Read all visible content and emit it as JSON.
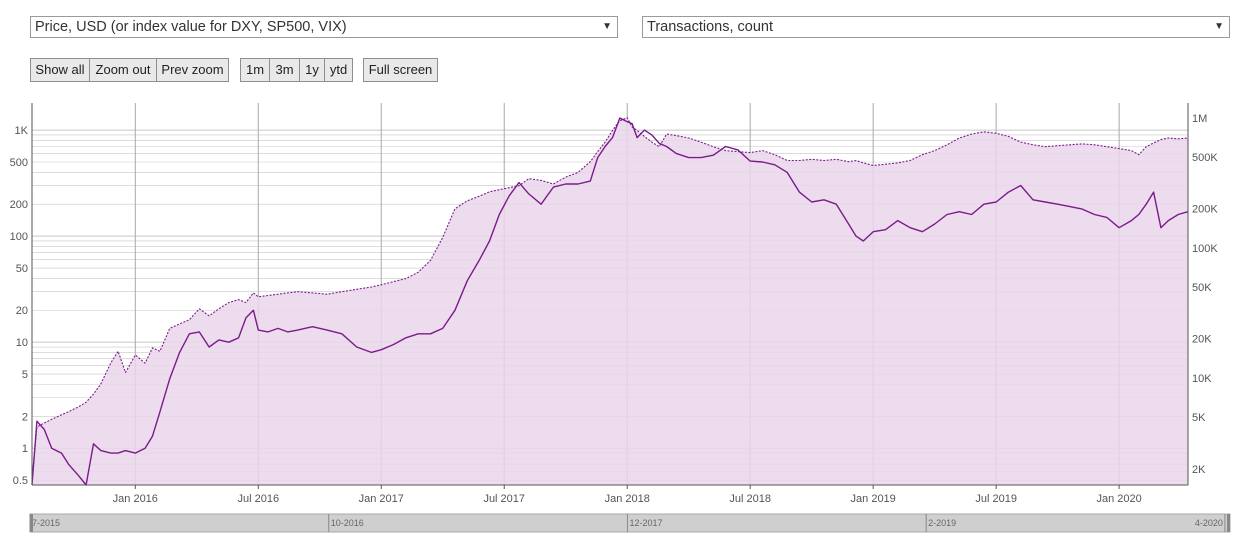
{
  "controls": {
    "left_select": {
      "value": "Price, USD (or index value for DXY, SP500, VIX)"
    },
    "right_select": {
      "value": "Transactions, count"
    },
    "zoom_buttons": [
      "Show all",
      "Zoom out",
      "Prev zoom"
    ],
    "range_buttons": [
      "1m",
      "3m",
      "1y",
      "ytd"
    ],
    "fullscreen_label": "Full screen",
    "arrow_glyph": "▼"
  },
  "colors": {
    "series": "#7b1b8c",
    "fill": "#ead6ea",
    "grid": "#c8c8c8",
    "navigator": "#cfcfcf"
  },
  "chart_data": {
    "type": "line",
    "title": "",
    "x_start": 2015.58,
    "x_end": 2020.28,
    "x_ticks": [
      {
        "x": 2016.0,
        "label": "Jan 2016"
      },
      {
        "x": 2016.5,
        "label": "Jul 2016"
      },
      {
        "x": 2017.0,
        "label": "Jan 2017"
      },
      {
        "x": 2017.5,
        "label": "Jul 2017"
      },
      {
        "x": 2018.0,
        "label": "Jan 2018"
      },
      {
        "x": 2018.5,
        "label": "Jul 2018"
      },
      {
        "x": 2019.0,
        "label": "Jan 2019"
      },
      {
        "x": 2019.5,
        "label": "Jul 2019"
      },
      {
        "x": 2020.0,
        "label": "Jan 2020"
      }
    ],
    "y_left": {
      "label": "Price, USD",
      "scale": "log",
      "ylim": [
        0.45,
        1800
      ],
      "ticks": [
        {
          "v": 1000,
          "label": "1K"
        },
        {
          "v": 500,
          "label": "500"
        },
        {
          "v": 200,
          "label": "200"
        },
        {
          "v": 100,
          "label": "100"
        },
        {
          "v": 50,
          "label": "50"
        },
        {
          "v": 20,
          "label": "20"
        },
        {
          "v": 10,
          "label": "10"
        },
        {
          "v": 5,
          "label": "5"
        },
        {
          "v": 2,
          "label": "2"
        },
        {
          "v": 1,
          "label": "1"
        },
        {
          "v": 0.5,
          "label": "0.5"
        }
      ]
    },
    "y_right": {
      "label": "Transactions, count",
      "scale": "log",
      "ylim": [
        1500,
        1300000
      ],
      "ticks": [
        {
          "v": 1000000,
          "label": "1M"
        },
        {
          "v": 500000,
          "label": "500K"
        },
        {
          "v": 200000,
          "label": "200K"
        },
        {
          "v": 100000,
          "label": "100K"
        },
        {
          "v": 50000,
          "label": "50K"
        },
        {
          "v": 20000,
          "label": "20K"
        },
        {
          "v": 10000,
          "label": "10K"
        },
        {
          "v": 5000,
          "label": "5K"
        },
        {
          "v": 2000,
          "label": "2K"
        }
      ]
    },
    "series": [
      {
        "name": "Price, USD",
        "axis": "left",
        "style": "solid",
        "x": [
          2015.58,
          2015.6,
          2015.63,
          2015.66,
          2015.7,
          2015.73,
          2015.77,
          2015.8,
          2015.83,
          2015.86,
          2015.9,
          2015.93,
          2015.96,
          2016.0,
          2016.04,
          2016.07,
          2016.1,
          2016.14,
          2016.18,
          2016.22,
          2016.26,
          2016.3,
          2016.34,
          2016.38,
          2016.42,
          2016.45,
          2016.48,
          2016.5,
          2016.54,
          2016.58,
          2016.62,
          2016.66,
          2016.72,
          2016.78,
          2016.84,
          2016.9,
          2016.96,
          2017.0,
          2017.05,
          2017.1,
          2017.15,
          2017.2,
          2017.25,
          2017.3,
          2017.35,
          2017.4,
          2017.44,
          2017.48,
          2017.52,
          2017.56,
          2017.6,
          2017.65,
          2017.7,
          2017.75,
          2017.8,
          2017.85,
          2017.88,
          2017.91,
          2017.94,
          2017.97,
          2018.0,
          2018.02,
          2018.04,
          2018.07,
          2018.1,
          2018.13,
          2018.16,
          2018.2,
          2018.25,
          2018.3,
          2018.35,
          2018.4,
          2018.45,
          2018.5,
          2018.55,
          2018.6,
          2018.65,
          2018.7,
          2018.75,
          2018.8,
          2018.85,
          2018.9,
          2018.93,
          2018.96,
          2019.0,
          2019.05,
          2019.1,
          2019.15,
          2019.2,
          2019.25,
          2019.3,
          2019.35,
          2019.4,
          2019.45,
          2019.5,
          2019.55,
          2019.6,
          2019.65,
          2019.7,
          2019.75,
          2019.8,
          2019.85,
          2019.9,
          2019.95,
          2020.0,
          2020.05,
          2020.08,
          2020.11,
          2020.14,
          2020.17,
          2020.2,
          2020.24,
          2020.28
        ],
        "values": [
          0.45,
          1.8,
          1.5,
          1.0,
          0.9,
          0.7,
          0.55,
          0.45,
          1.1,
          0.95,
          0.9,
          0.9,
          0.95,
          0.9,
          1.0,
          1.3,
          2.2,
          4.5,
          8,
          12,
          12.5,
          9,
          10.5,
          10,
          11,
          17,
          20,
          13,
          12.5,
          13.5,
          12.5,
          13,
          14,
          13,
          12,
          9,
          8,
          8.5,
          9.5,
          11,
          12,
          12,
          13.5,
          20,
          38,
          60,
          90,
          160,
          240,
          320,
          250,
          200,
          290,
          310,
          310,
          330,
          550,
          700,
          850,
          1300,
          1200,
          1150,
          850,
          1000,
          900,
          750,
          700,
          600,
          550,
          550,
          580,
          700,
          650,
          510,
          500,
          470,
          400,
          260,
          210,
          220,
          200,
          130,
          100,
          90,
          110,
          115,
          140,
          120,
          110,
          130,
          160,
          170,
          160,
          200,
          210,
          260,
          300,
          220,
          210,
          200,
          190,
          180,
          160,
          150,
          120,
          140,
          160,
          200,
          260,
          120,
          140,
          160,
          170
        ],
        "style_ref": "series"
      },
      {
        "name": "Transactions, count",
        "axis": "right",
        "style": "dotted",
        "x": [
          2015.58,
          2015.6,
          2015.63,
          2015.66,
          2015.7,
          2015.73,
          2015.77,
          2015.8,
          2015.83,
          2015.86,
          2015.9,
          2015.93,
          2015.96,
          2016.0,
          2016.04,
          2016.07,
          2016.1,
          2016.14,
          2016.18,
          2016.22,
          2016.26,
          2016.3,
          2016.34,
          2016.38,
          2016.42,
          2016.45,
          2016.48,
          2016.5,
          2016.54,
          2016.58,
          2016.62,
          2016.66,
          2016.72,
          2016.78,
          2016.84,
          2016.9,
          2016.96,
          2017.0,
          2017.05,
          2017.1,
          2017.15,
          2017.2,
          2017.25,
          2017.3,
          2017.35,
          2017.4,
          2017.44,
          2017.48,
          2017.52,
          2017.56,
          2017.6,
          2017.65,
          2017.7,
          2017.75,
          2017.8,
          2017.85,
          2017.88,
          2017.91,
          2017.94,
          2017.97,
          2018.0,
          2018.02,
          2018.04,
          2018.07,
          2018.1,
          2018.13,
          2018.16,
          2018.2,
          2018.25,
          2018.3,
          2018.35,
          2018.4,
          2018.45,
          2018.5,
          2018.55,
          2018.6,
          2018.65,
          2018.7,
          2018.75,
          2018.8,
          2018.85,
          2018.9,
          2018.93,
          2018.96,
          2019.0,
          2019.05,
          2019.1,
          2019.15,
          2019.2,
          2019.25,
          2019.3,
          2019.35,
          2019.4,
          2019.45,
          2019.5,
          2019.55,
          2019.6,
          2019.65,
          2019.7,
          2019.75,
          2019.8,
          2019.85,
          2019.9,
          2019.95,
          2020.0,
          2020.05,
          2020.08,
          2020.11,
          2020.14,
          2020.17,
          2020.2,
          2020.24,
          2020.28
        ],
        "values": [
          1600,
          4200,
          4500,
          4800,
          5200,
          5500,
          6000,
          6500,
          7500,
          9000,
          13000,
          16000,
          11000,
          15000,
          13000,
          17000,
          16000,
          24000,
          26000,
          28000,
          34000,
          30000,
          34000,
          38000,
          40000,
          38000,
          45000,
          42000,
          43000,
          44000,
          45000,
          46000,
          45000,
          44000,
          46000,
          48000,
          50000,
          52000,
          55000,
          58000,
          65000,
          80000,
          120000,
          200000,
          230000,
          250000,
          270000,
          280000,
          290000,
          300000,
          340000,
          330000,
          310000,
          350000,
          380000,
          460000,
          550000,
          650000,
          800000,
          950000,
          1000000,
          850000,
          800000,
          720000,
          650000,
          600000,
          750000,
          730000,
          700000,
          650000,
          600000,
          560000,
          550000,
          540000,
          560000,
          520000,
          470000,
          470000,
          480000,
          470000,
          480000,
          460000,
          470000,
          450000,
          430000,
          440000,
          450000,
          470000,
          520000,
          560000,
          620000,
          700000,
          750000,
          780000,
          760000,
          720000,
          650000,
          620000,
          600000,
          610000,
          620000,
          630000,
          620000,
          600000,
          580000,
          560000,
          520000,
          600000,
          640000,
          680000,
          700000,
          690000,
          700000
        ],
        "style_ref": "series"
      }
    ],
    "navigator": {
      "labels": [
        {
          "x": 2015.58,
          "label": "7-2015"
        },
        {
          "x": 2016.75,
          "label": "10-2016"
        },
        {
          "x": 2017.92,
          "label": "12-2017"
        },
        {
          "x": 2019.09,
          "label": "2-2019"
        },
        {
          "x": 2020.26,
          "label": "4-2020"
        }
      ]
    }
  }
}
